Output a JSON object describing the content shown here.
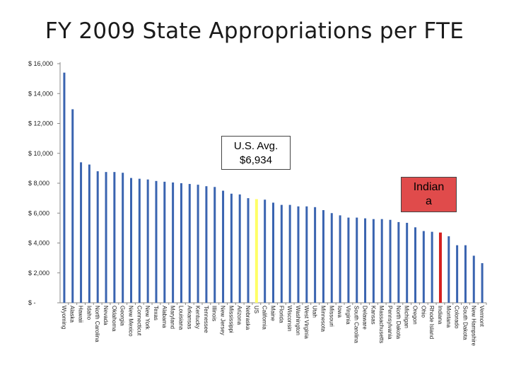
{
  "title": "FY 2009 State Appropriations per FTE",
  "chart_data": {
    "type": "bar",
    "title": "FY 2009 State Appropriations per FTE",
    "xlabel": "",
    "ylabel": "",
    "ylim": [
      0,
      16000
    ],
    "y_ticks": [
      {
        "value": 0,
        "label": "$ -"
      },
      {
        "value": 2000,
        "label": "$ 2,000"
      },
      {
        "value": 4000,
        "label": "$ 4,000"
      },
      {
        "value": 6000,
        "label": "$ 6,000"
      },
      {
        "value": 8000,
        "label": "$ 8,000"
      },
      {
        "value": 10000,
        "label": "$ 10,000"
      },
      {
        "value": 12000,
        "label": "$ 12,000"
      },
      {
        "value": 14000,
        "label": "$ 14,000"
      },
      {
        "value": 16000,
        "label": "$ 16,000"
      }
    ],
    "categories": [
      "Wyoming",
      "Alaska",
      "Hawaii",
      "Idaho",
      "North Carolina",
      "Nevada",
      "Oklahoma",
      "Georgia",
      "New Mexico",
      "Connecticut",
      "New York",
      "Texas",
      "Alabama",
      "Maryland",
      "Louisiana",
      "Arkansas",
      "Kentucky",
      "Tennessee",
      "Illinois",
      "New Jersey",
      "Mississippi",
      "Arizona",
      "Nebraska",
      "US",
      "California",
      "Maine",
      "Florida",
      "Wisconsin",
      "Washington",
      "West Virginia",
      "Utah",
      "Minnesota",
      "Missouri",
      "Iowa",
      "Virginia",
      "South Carolina",
      "Delaware",
      "Kansas",
      "Massachusetts",
      "Pennsylvania",
      "North Dakota",
      "Michigan",
      "Oregon",
      "Ohio",
      "Rhode Island",
      "Indiana",
      "Montana",
      "Colorado",
      "South Dakota",
      "New Hampshire",
      "Vermont"
    ],
    "values": [
      15400,
      12950,
      9400,
      9250,
      8800,
      8750,
      8750,
      8700,
      8350,
      8300,
      8250,
      8150,
      8100,
      8050,
      8000,
      7950,
      7900,
      7800,
      7750,
      7500,
      7300,
      7250,
      7000,
      6934,
      6900,
      6700,
      6550,
      6550,
      6450,
      6450,
      6400,
      6200,
      6000,
      5850,
      5700,
      5700,
      5650,
      5600,
      5600,
      5550,
      5400,
      5350,
      5050,
      4800,
      4750,
      4700,
      4450,
      3850,
      3850,
      3150,
      2650
    ],
    "colors": {
      "default": "#3a64b0",
      "highlight_us": "#ffff66",
      "highlight_indiana": "#d42020"
    },
    "highlights": {
      "US": "highlight_us",
      "Indiana": "highlight_indiana"
    }
  },
  "callouts": {
    "us_avg": {
      "line1": "U.S. Avg.",
      "line2": "$6,934"
    },
    "indiana": {
      "line1": "Indian",
      "line2": "a"
    }
  }
}
